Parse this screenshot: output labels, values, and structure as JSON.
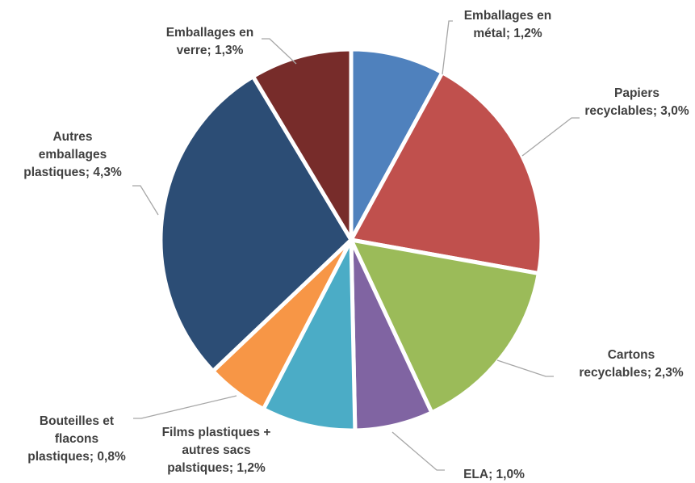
{
  "chart_data": {
    "type": "pie",
    "title": "",
    "slices": [
      {
        "category": "Emballages en métal",
        "value": 1.2,
        "label_lines": [
          "Emballages en",
          "métal; 1,2%"
        ],
        "color": "#4f81bd"
      },
      {
        "category": "Papiers recyclables",
        "value": 3.0,
        "label_lines": [
          "Papiers",
          "recyclables; 3,0%"
        ],
        "color": "#c0504d"
      },
      {
        "category": "Cartons recyclables",
        "value": 2.3,
        "label_lines": [
          "Cartons",
          "recyclables; 2,3%"
        ],
        "color": "#9bbb59"
      },
      {
        "category": "ELA",
        "value": 1.0,
        "label_lines": [
          "ELA; 1,0%"
        ],
        "color": "#8064a2"
      },
      {
        "category": "Films plastiques + autres sacs palstiques",
        "value": 1.2,
        "label_lines": [
          "Films plastiques +",
          "autres sacs",
          "palstiques; 1,2%"
        ],
        "color": "#4bacc6"
      },
      {
        "category": "Bouteilles et flacons plastiques",
        "value": 0.8,
        "label_lines": [
          "Bouteilles et",
          "flacons",
          "plastiques; 0,8%"
        ],
        "color": "#f79646"
      },
      {
        "category": "Autres emballages plastiques",
        "value": 4.3,
        "label_lines": [
          "Autres",
          "emballages",
          "plastiques; 4,3%"
        ],
        "color": "#2c4d75"
      },
      {
        "category": "Emballages en verre",
        "value": 1.3,
        "label_lines": [
          "Emballages en",
          "verre; 1,3%"
        ],
        "color": "#772c2a"
      }
    ]
  }
}
